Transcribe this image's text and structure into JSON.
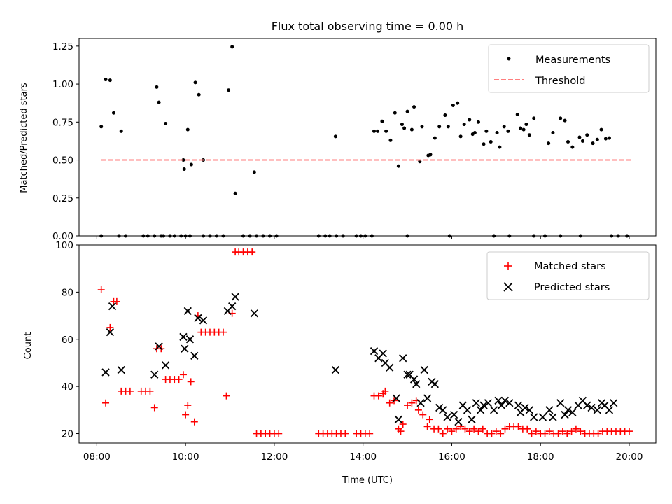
{
  "chart_data": [
    {
      "type": "scatter",
      "title": "Flux total observing time = 0.00 h",
      "xlabel": "",
      "ylabel": "Matched/Predicted stars",
      "xlim": [
        7.6,
        20.6
      ],
      "ylim": [
        0,
        1.3
      ],
      "yticks": [
        0.0,
        0.25,
        0.5,
        0.75,
        1.0,
        1.25
      ],
      "ytick_labels": [
        "0.00",
        "0.25",
        "0.50",
        "0.75",
        "1.00",
        "1.25"
      ],
      "xticks": [
        8,
        10,
        12,
        14,
        16,
        18,
        20
      ],
      "legend": {
        "position": "top-right",
        "entries": [
          "Measurements",
          "Threshold"
        ]
      },
      "series": [
        {
          "name": "Measurements",
          "marker": "dot",
          "color": "#000000",
          "x": [
            8.1,
            8.2,
            8.3,
            8.38,
            8.55,
            9.35,
            9.4,
            9.55,
            9.95,
            9.97,
            10.05,
            10.13,
            10.22,
            10.3,
            10.4,
            10.97,
            11.05,
            11.12,
            11.55,
            13.38,
            14.25,
            14.33,
            14.43,
            14.52,
            14.62,
            14.72,
            14.8,
            14.88,
            14.93,
            15.0,
            15.1,
            15.15,
            15.28,
            15.33,
            15.47,
            15.52,
            15.62,
            15.72,
            15.85,
            15.92,
            16.03,
            16.13,
            16.2,
            16.28,
            16.4,
            16.47,
            16.52,
            16.6,
            16.72,
            16.78,
            16.88,
            17.02,
            17.08,
            17.18,
            17.27,
            17.48,
            17.55,
            17.62,
            17.68,
            17.75,
            17.85,
            18.18,
            18.28,
            18.45,
            18.55,
            18.62,
            18.72,
            18.88,
            18.95,
            19.05,
            19.18,
            19.28,
            19.37,
            19.47,
            19.55
          ],
          "y": [
            0.72,
            1.03,
            1.025,
            0.81,
            0.69,
            0.98,
            0.88,
            0.74,
            0.5,
            0.44,
            0.7,
            0.47,
            1.01,
            0.93,
            0.5,
            0.96,
            1.245,
            0.28,
            0.42,
            0.655,
            0.69,
            0.69,
            0.755,
            0.69,
            0.63,
            0.81,
            0.46,
            0.735,
            0.71,
            0.82,
            0.7,
            0.85,
            0.49,
            0.72,
            0.53,
            0.535,
            0.645,
            0.72,
            0.795,
            0.72,
            0.86,
            0.875,
            0.655,
            0.735,
            0.765,
            0.67,
            0.68,
            0.75,
            0.605,
            0.69,
            0.62,
            0.68,
            0.585,
            0.72,
            0.69,
            0.8,
            0.71,
            0.7,
            0.735,
            0.665,
            0.775,
            0.61,
            0.68,
            0.775,
            0.76,
            0.62,
            0.585,
            0.65,
            0.625,
            0.665,
            0.61,
            0.635,
            0.7,
            0.64,
            0.645
          ]
        },
        {
          "name": "Measurements",
          "marker": "dot",
          "color": "#000000",
          "x": [
            8.1,
            8.5,
            8.65,
            9.05,
            9.15,
            9.3,
            9.45,
            9.5,
            9.65,
            9.75,
            9.9,
            10.0,
            10.1,
            10.4,
            10.55,
            10.7,
            10.85,
            11.3,
            11.45,
            11.6,
            11.75,
            11.9,
            12.05,
            13.0,
            13.15,
            13.25,
            13.4,
            13.55,
            13.85,
            13.95,
            14.05,
            14.2,
            15.0,
            15.95,
            16.95,
            17.3,
            17.85,
            18.1,
            18.45,
            18.9,
            19.6,
            19.75,
            19.95
          ],
          "y": [
            0,
            0,
            0,
            0,
            0,
            0,
            0,
            0,
            0,
            0,
            0,
            0,
            0,
            0,
            0,
            0,
            0,
            0,
            0,
            0,
            0,
            0,
            0,
            0,
            0,
            0,
            0,
            0,
            0,
            0,
            0,
            0,
            0,
            0,
            0,
            0,
            0,
            0,
            0,
            0,
            0,
            0,
            0
          ]
        },
        {
          "name": "Threshold",
          "type": "line",
          "style": "dashed",
          "color": "#ff7f7f",
          "x": [
            8.1,
            20.05
          ],
          "y": [
            0.5,
            0.5
          ]
        }
      ]
    },
    {
      "type": "scatter",
      "title": "",
      "xlabel": "Time (UTC)",
      "ylabel": "Count",
      "xlim": [
        7.6,
        20.6
      ],
      "ylim": [
        16,
        100
      ],
      "yticks": [
        20,
        40,
        60,
        80,
        100
      ],
      "xticks": [
        8,
        10,
        12,
        14,
        16,
        18,
        20
      ],
      "xtick_labels": [
        "08:00",
        "10:00",
        "12:00",
        "14:00",
        "16:00",
        "18:00",
        "20:00"
      ],
      "legend": {
        "position": "top-right",
        "entries": [
          "Matched stars",
          "Predicted stars"
        ]
      },
      "series": [
        {
          "name": "Matched stars",
          "marker": "plus",
          "color": "#ff0000",
          "x": [
            8.1,
            8.2,
            8.3,
            8.38,
            8.45,
            8.55,
            8.65,
            8.75,
            9.0,
            9.1,
            9.2,
            9.3,
            9.35,
            9.45,
            9.55,
            9.65,
            9.75,
            9.85,
            9.95,
            10.0,
            10.05,
            10.12,
            10.2,
            10.28,
            10.35,
            10.45,
            10.55,
            10.65,
            10.75,
            10.85,
            10.92,
            11.05,
            11.12,
            11.2,
            11.3,
            11.4,
            11.5,
            11.6,
            11.7,
            11.8,
            11.9,
            12.0,
            12.1,
            13.0,
            13.1,
            13.2,
            13.3,
            13.4,
            13.5,
            13.6,
            13.85,
            13.95,
            14.05,
            14.15,
            14.25,
            14.35,
            14.45,
            14.5,
            14.6,
            14.7,
            14.8,
            14.85,
            14.9,
            15.0,
            15.1,
            15.2,
            15.25,
            15.35,
            15.45,
            15.5,
            15.6,
            15.7,
            15.8,
            15.9,
            16.0,
            16.1,
            16.2,
            16.3,
            16.4,
            16.5,
            16.6,
            16.7,
            16.8,
            16.9,
            17.0,
            17.1,
            17.2,
            17.3,
            17.4,
            17.5,
            17.6,
            17.7,
            17.8,
            17.9,
            18.0,
            18.1,
            18.2,
            18.3,
            18.4,
            18.5,
            18.6,
            18.7,
            18.8,
            18.9,
            19.0,
            19.1,
            19.2,
            19.3,
            19.4,
            19.5,
            19.6,
            19.7,
            19.8,
            19.9,
            20.0
          ],
          "y": [
            81,
            33,
            65,
            76,
            76,
            38,
            38,
            38,
            38,
            38,
            38,
            31,
            56,
            56,
            43,
            43,
            43,
            43,
            45,
            28,
            32,
            42,
            25,
            70,
            63,
            63,
            63,
            63,
            63,
            63,
            36,
            71,
            97,
            97,
            97,
            97,
            97,
            20,
            20,
            20,
            20,
            20,
            20,
            20,
            20,
            20,
            20,
            20,
            20,
            20,
            20,
            20,
            20,
            20,
            36,
            36,
            37,
            38,
            33,
            34,
            22,
            21,
            24,
            32,
            33,
            34,
            30,
            28,
            23,
            26,
            22,
            22,
            20,
            22,
            21,
            22,
            23,
            22,
            21,
            22,
            21,
            22,
            20,
            20,
            21,
            20,
            22,
            23,
            23,
            23,
            22,
            22,
            20,
            21,
            20,
            20,
            21,
            20,
            20,
            21,
            20,
            21,
            22,
            21,
            20,
            20,
            20,
            20,
            21,
            21,
            21,
            21,
            21,
            21,
            21
          ]
        },
        {
          "name": "Predicted stars",
          "marker": "x",
          "color": "#000000",
          "x": [
            8.2,
            8.3,
            8.35,
            8.55,
            9.3,
            9.4,
            9.55,
            9.95,
            9.98,
            10.05,
            10.1,
            10.2,
            10.28,
            10.4,
            10.95,
            11.05,
            11.12,
            11.55,
            13.38,
            14.25,
            14.35,
            14.45,
            14.5,
            14.6,
            14.75,
            14.8,
            14.9,
            15.0,
            15.05,
            15.15,
            15.2,
            15.3,
            15.38,
            15.45,
            15.55,
            15.62,
            15.72,
            15.8,
            15.9,
            16.05,
            16.15,
            16.25,
            16.35,
            16.45,
            16.55,
            16.65,
            16.72,
            16.82,
            16.95,
            17.05,
            17.12,
            17.2,
            17.3,
            17.5,
            17.55,
            17.65,
            17.75,
            17.85,
            18.05,
            18.2,
            18.28,
            18.45,
            18.55,
            18.62,
            18.72,
            18.85,
            18.95,
            19.05,
            19.15,
            19.28,
            19.38,
            19.45,
            19.55,
            19.65
          ],
          "y": [
            46,
            63,
            74,
            47,
            45,
            57,
            49,
            61,
            56,
            72,
            60,
            53,
            69,
            68,
            72,
            74,
            78,
            71,
            47,
            55,
            52,
            54,
            50,
            48,
            35,
            26,
            52,
            45,
            45,
            43,
            41,
            33,
            47,
            35,
            42,
            41,
            31,
            30,
            27,
            28,
            25,
            32,
            30,
            26,
            33,
            30,
            32,
            33,
            30,
            34,
            32,
            34,
            33,
            32,
            29,
            31,
            30,
            27,
            27,
            30,
            27,
            33,
            28,
            30,
            29,
            32,
            34,
            32,
            31,
            30,
            33,
            32,
            30,
            33
          ]
        }
      ]
    }
  ]
}
